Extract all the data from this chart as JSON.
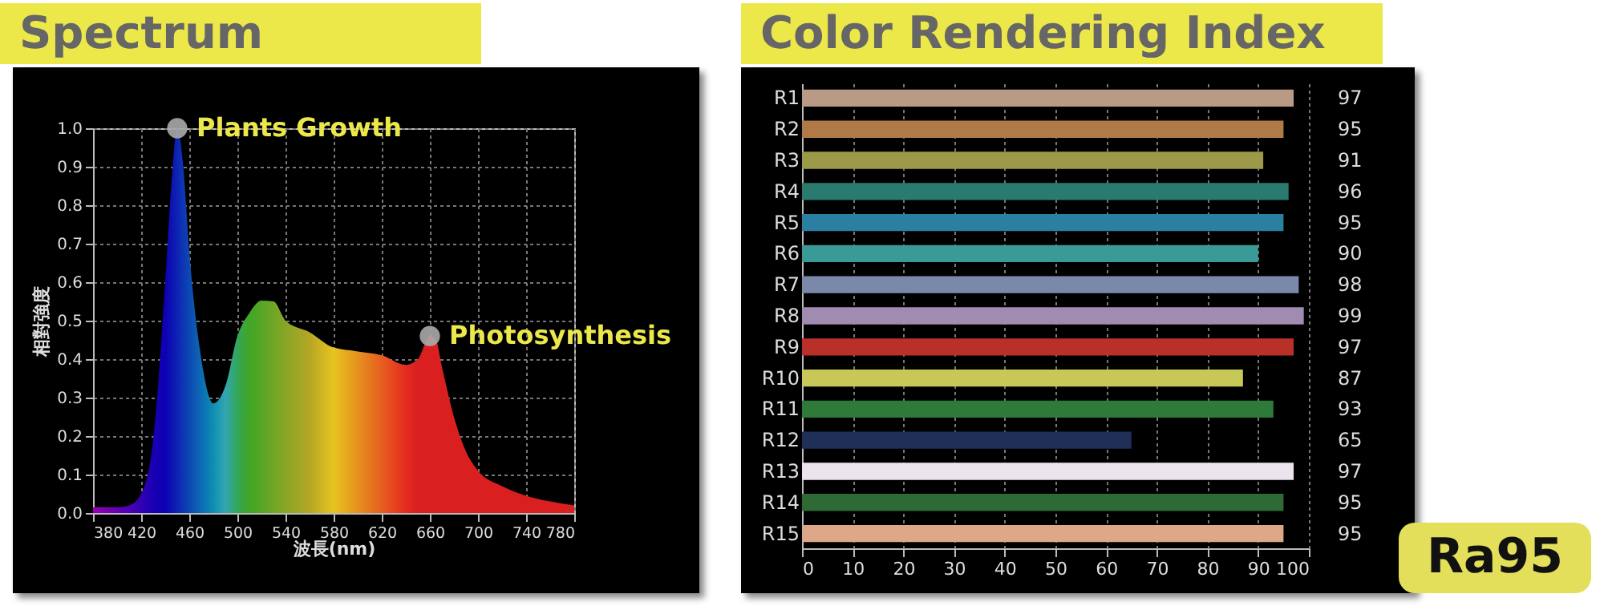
{
  "chart_data": [
    {
      "type": "area",
      "title": "Spectrum",
      "xlabel": "波長(nm)",
      "ylabel": "相對強度",
      "x": [
        380,
        400,
        410,
        420,
        430,
        440,
        445,
        450,
        455,
        460,
        470,
        480,
        490,
        500,
        510,
        520,
        530,
        540,
        560,
        580,
        600,
        620,
        640,
        650,
        660,
        665,
        670,
        680,
        690,
        700,
        720,
        740,
        760,
        780
      ],
      "values": [
        0.015,
        0.015,
        0.02,
        0.05,
        0.19,
        0.6,
        0.85,
        1.0,
        0.9,
        0.68,
        0.4,
        0.285,
        0.33,
        0.46,
        0.52,
        0.552,
        0.55,
        0.5,
        0.47,
        0.43,
        0.42,
        0.41,
        0.385,
        0.4,
        0.46,
        0.45,
        0.38,
        0.25,
        0.16,
        0.11,
        0.07,
        0.045,
        0.03,
        0.02
      ],
      "xlim": [
        380,
        780
      ],
      "xticks": [
        380,
        420,
        460,
        500,
        540,
        580,
        620,
        660,
        700,
        740,
        780
      ],
      "ylim": [
        0,
        1
      ],
      "yticks": [
        {
          "value": 0,
          "label": "0.0"
        },
        0.1,
        0.2,
        0.3,
        0.4,
        0.5,
        0.6,
        0.7,
        0.8,
        0.9,
        {
          "value": 1,
          "label": "1.0"
        }
      ],
      "grid": true,
      "annotations": [
        {
          "text": "Plants Growth",
          "x": 450,
          "y": 1.0
        },
        {
          "text": "Photosynthesis",
          "x": 660,
          "y": 0.46
        }
      ]
    },
    {
      "type": "bar",
      "orientation": "horizontal",
      "title": "Color Rendering Index",
      "categories": [
        "R1",
        "R2",
        "R3",
        "R4",
        "R5",
        "R6",
        "R7",
        "R8",
        "R9",
        "R10",
        "R11",
        "R12",
        "R13",
        "R14",
        "R15"
      ],
      "values": [
        97,
        95,
        91,
        96,
        95,
        90,
        98,
        99,
        97,
        87,
        93,
        65,
        97,
        95,
        95
      ],
      "colors": [
        "#b89a85",
        "#b07a48",
        "#9c9a48",
        "#2a7a70",
        "#2a80a0",
        "#3a9a98",
        "#7a88aa",
        "#a08cb0",
        "#b83028",
        "#c8c858",
        "#2f7a3a",
        "#1f2f58",
        "#ece4ec",
        "#2e6a36",
        "#dca888"
      ],
      "xlim": [
        0,
        100
      ],
      "xticks": [
        0,
        10,
        20,
        30,
        40,
        50,
        60,
        70,
        80,
        90,
        100
      ],
      "grid": "x",
      "data_labels": true,
      "annotations": [
        "Ra95"
      ]
    }
  ]
}
